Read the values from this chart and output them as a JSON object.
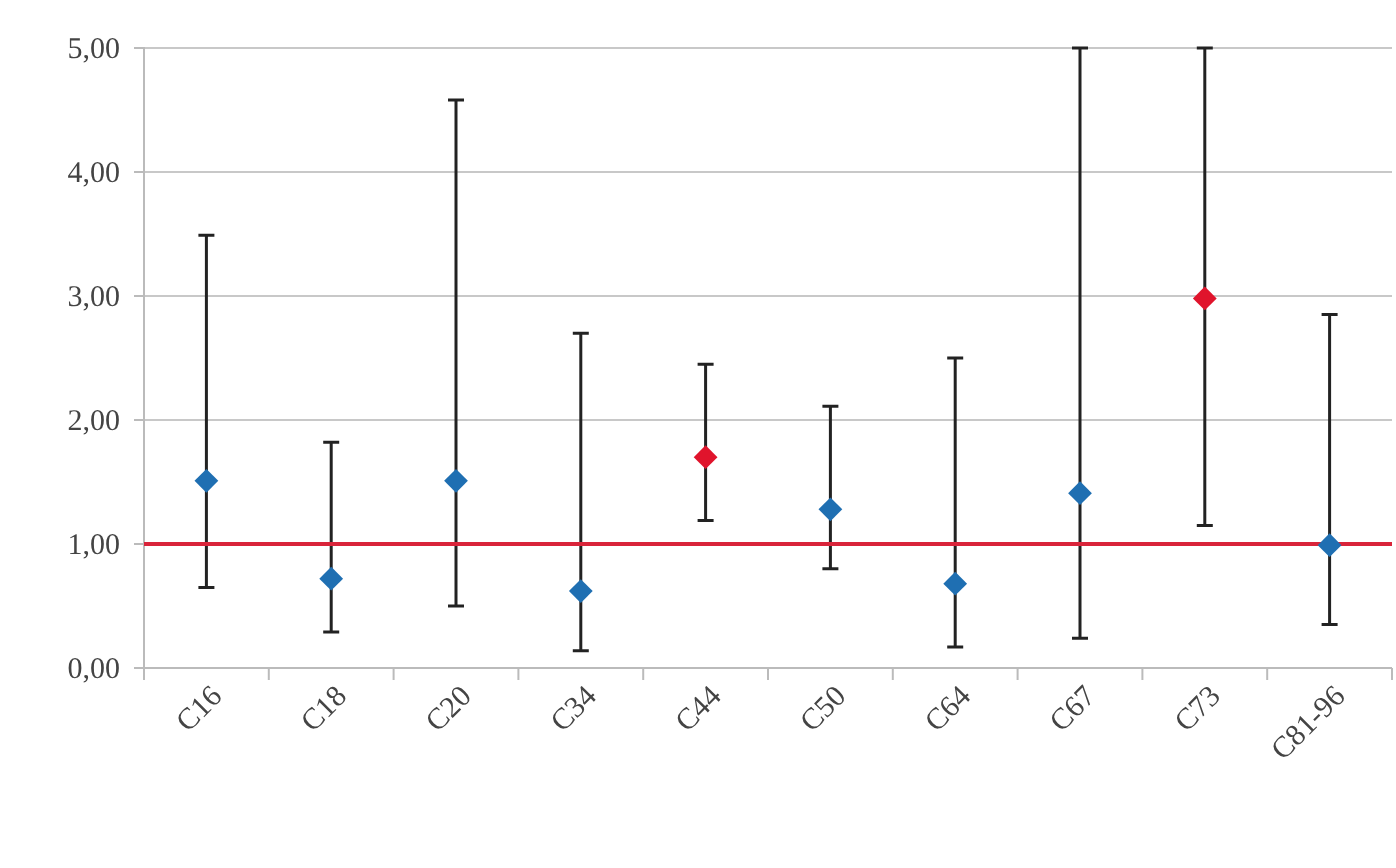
{
  "chart_data": {
    "type": "scatter",
    "categories": [
      "C16",
      "C18",
      "C20",
      "C34",
      "C44",
      "C50",
      "C64",
      "C67",
      "C73",
      "C81-96"
    ],
    "values": [
      1.51,
      0.72,
      1.51,
      0.62,
      1.7,
      1.28,
      0.68,
      1.41,
      2.98,
      0.99
    ],
    "colors": [
      "#1f6fb2",
      "#1f6fb2",
      "#1f6fb2",
      "#1f6fb2",
      "#e0142c",
      "#1f6fb2",
      "#1f6fb2",
      "#1f6fb2",
      "#e0142c",
      "#1f6fb2"
    ],
    "errors": [
      [
        0.65,
        3.49
      ],
      [
        0.29,
        1.82
      ],
      [
        0.5,
        4.58
      ],
      [
        0.14,
        2.7
      ],
      [
        1.19,
        2.45
      ],
      [
        0.8,
        2.11
      ],
      [
        0.17,
        2.5
      ],
      [
        0.24,
        5.0
      ],
      [
        1.15,
        5.0
      ],
      [
        0.35,
        2.85
      ]
    ],
    "ylim": [
      0,
      5
    ],
    "yticks": [
      {
        "value": 0,
        "label": "0,00"
      },
      {
        "value": 1,
        "label": "1,00"
      },
      {
        "value": 2,
        "label": "2,00"
      },
      {
        "value": 3,
        "label": "3,00"
      },
      {
        "value": 4,
        "label": "4,00"
      },
      {
        "value": 5,
        "label": "5,00"
      }
    ],
    "grid": "y",
    "marker": "diamond",
    "ref_lines": [
      {
        "axis": "y",
        "value": 1,
        "color": "#d9243a"
      }
    ]
  }
}
